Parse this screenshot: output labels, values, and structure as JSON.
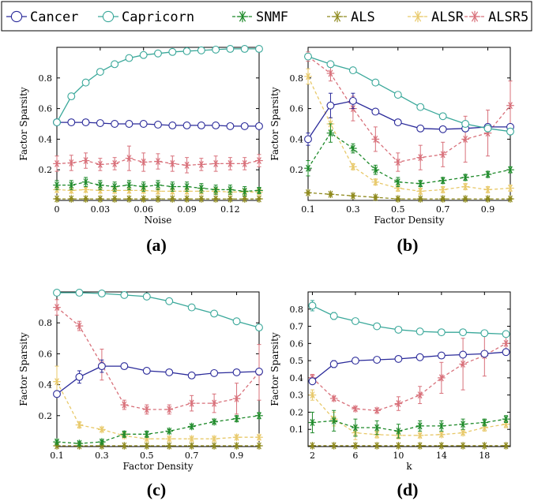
{
  "legend": {
    "entries": [
      {
        "name": "Cancer",
        "color": "#2a2a9a",
        "marker": "circle",
        "dash": "solid"
      },
      {
        "name": "Capricorn",
        "color": "#3aa89a",
        "marker": "circle",
        "dash": "solid"
      },
      {
        "name": "SNMF",
        "color": "#1e8a2a",
        "marker": "star",
        "dash": "dashed"
      },
      {
        "name": "ALS",
        "color": "#8f8a1e",
        "marker": "star",
        "dash": "dashed"
      },
      {
        "name": "ALSR",
        "color": "#e8c96a",
        "marker": "star",
        "dash": "dashed"
      },
      {
        "name": "ALSR5",
        "color": "#d8707a",
        "marker": "star",
        "dash": "dashed"
      }
    ]
  },
  "chart_data": [
    {
      "type": "line",
      "panel_label": "(a)",
      "xlabel": "Noise",
      "ylabel": "Factor Sparsity",
      "xlim": [
        0,
        0.14
      ],
      "ylim": [
        0,
        1.0
      ],
      "xticks": [
        0,
        0.03,
        0.06,
        0.09,
        0.12
      ],
      "xtick_labels": [
        "0",
        "0.03",
        "0.06",
        "0.09",
        "0.12"
      ],
      "yticks": [
        0.2,
        0.4,
        0.6,
        0.8
      ],
      "ytick_labels": [
        "0.2",
        "0.4",
        "0.6",
        "0.8"
      ],
      "x": [
        0,
        0.01,
        0.02,
        0.03,
        0.04,
        0.05,
        0.06,
        0.07,
        0.08,
        0.09,
        0.1,
        0.11,
        0.12,
        0.13,
        0.14
      ],
      "series": [
        {
          "name": "Cancer",
          "values": [
            0.51,
            0.51,
            0.51,
            0.505,
            0.5,
            0.5,
            0.5,
            0.495,
            0.49,
            0.49,
            0.49,
            0.49,
            0.485,
            0.485,
            0.485
          ],
          "err": [
            0.005,
            0.005,
            0.005,
            0.005,
            0.005,
            0.005,
            0.005,
            0.005,
            0.005,
            0.005,
            0.005,
            0.005,
            0.005,
            0.005,
            0.005
          ]
        },
        {
          "name": "Capricorn",
          "values": [
            0.51,
            0.68,
            0.77,
            0.84,
            0.89,
            0.93,
            0.95,
            0.96,
            0.97,
            0.975,
            0.98,
            0.985,
            0.99,
            0.99,
            0.99
          ],
          "err": [
            0.01,
            0.02,
            0.015,
            0.01,
            0.01,
            0.005,
            0.005,
            0.005,
            0.005,
            0.005,
            0.005,
            0.005,
            0.005,
            0.005,
            0.005
          ]
        },
        {
          "name": "SNMF",
          "values": [
            0.1,
            0.1,
            0.12,
            0.1,
            0.09,
            0.1,
            0.09,
            0.1,
            0.09,
            0.09,
            0.08,
            0.07,
            0.07,
            0.06,
            0.065
          ],
          "err": [
            0.03,
            0.03,
            0.03,
            0.03,
            0.03,
            0.03,
            0.03,
            0.03,
            0.03,
            0.03,
            0.03,
            0.03,
            0.03,
            0.03,
            0.02
          ]
        },
        {
          "name": "ALS",
          "values": [
            0.01,
            0.01,
            0.01,
            0.01,
            0.01,
            0.01,
            0.01,
            0.01,
            0.01,
            0.01,
            0.01,
            0.01,
            0.01,
            0.01,
            0.01
          ],
          "err": [
            0.003,
            0.003,
            0.003,
            0.003,
            0.003,
            0.003,
            0.003,
            0.003,
            0.003,
            0.003,
            0.003,
            0.003,
            0.003,
            0.003,
            0.003
          ]
        },
        {
          "name": "ALSR",
          "values": [
            0.07,
            0.065,
            0.07,
            0.065,
            0.065,
            0.065,
            0.065,
            0.06,
            0.06,
            0.06,
            0.06,
            0.06,
            0.055,
            0.055,
            0.055
          ],
          "err": [
            0.015,
            0.015,
            0.015,
            0.015,
            0.015,
            0.015,
            0.015,
            0.015,
            0.015,
            0.015,
            0.015,
            0.015,
            0.015,
            0.015,
            0.015
          ]
        },
        {
          "name": "ALSR5",
          "values": [
            0.24,
            0.245,
            0.26,
            0.235,
            0.24,
            0.275,
            0.25,
            0.255,
            0.24,
            0.23,
            0.235,
            0.24,
            0.24,
            0.24,
            0.26
          ],
          "err": [
            0.05,
            0.05,
            0.05,
            0.04,
            0.04,
            0.08,
            0.06,
            0.05,
            0.05,
            0.05,
            0.04,
            0.05,
            0.04,
            0.04,
            0.04
          ]
        }
      ]
    },
    {
      "type": "line",
      "panel_label": "(b)",
      "xlabel": "Factor Density",
      "ylabel": "Factor Sparsity",
      "xlim": [
        0.1,
        1.0
      ],
      "ylim": [
        0,
        1.0
      ],
      "xticks": [
        0.1,
        0.3,
        0.5,
        0.7,
        0.9
      ],
      "xtick_labels": [
        "0.1",
        "0.3",
        "0.5",
        "0.7",
        "0.9"
      ],
      "yticks": [
        0.2,
        0.4,
        0.6,
        0.8
      ],
      "ytick_labels": [
        "0.2",
        "0.4",
        "0.6",
        "0.8"
      ],
      "x": [
        0.1,
        0.2,
        0.3,
        0.4,
        0.5,
        0.6,
        0.7,
        0.8,
        0.9,
        1.0
      ],
      "series": [
        {
          "name": "Cancer",
          "values": [
            0.4,
            0.62,
            0.65,
            0.58,
            0.51,
            0.47,
            0.465,
            0.47,
            0.48,
            0.48
          ],
          "err": [
            0.04,
            0.08,
            0.05,
            0.01,
            0.01,
            0.01,
            0.01,
            0.01,
            0.01,
            0.01
          ]
        },
        {
          "name": "Capricorn",
          "values": [
            0.94,
            0.89,
            0.85,
            0.77,
            0.69,
            0.61,
            0.55,
            0.5,
            0.47,
            0.45
          ],
          "err": [
            0.01,
            0.01,
            0.01,
            0.01,
            0.01,
            0.01,
            0.01,
            0.01,
            0.01,
            0.01
          ]
        },
        {
          "name": "SNMF",
          "values": [
            0.21,
            0.44,
            0.34,
            0.2,
            0.12,
            0.11,
            0.13,
            0.15,
            0.17,
            0.2
          ],
          "err": [
            0.05,
            0.06,
            0.03,
            0.03,
            0.03,
            0.02,
            0.02,
            0.02,
            0.02,
            0.02
          ]
        },
        {
          "name": "ALS",
          "values": [
            0.05,
            0.04,
            0.03,
            0.02,
            0.01,
            0.01,
            0.01,
            0.01,
            0.01,
            0.01
          ],
          "err": [
            0.005,
            0.005,
            0.005,
            0.005,
            0.005,
            0.005,
            0.005,
            0.005,
            0.005,
            0.005
          ]
        },
        {
          "name": "ALSR",
          "values": [
            0.81,
            0.5,
            0.22,
            0.12,
            0.08,
            0.06,
            0.07,
            0.09,
            0.07,
            0.08
          ],
          "err": [
            0.05,
            0.04,
            0.02,
            0.02,
            0.02,
            0.02,
            0.02,
            0.02,
            0.02,
            0.02
          ]
        },
        {
          "name": "ALSR5",
          "values": [
            0.94,
            0.83,
            0.6,
            0.4,
            0.25,
            0.28,
            0.3,
            0.4,
            0.44,
            0.62
          ],
          "err": [
            0.03,
            0.05,
            0.08,
            0.08,
            0.06,
            0.08,
            0.08,
            0.15,
            0.15,
            0.16
          ]
        }
      ]
    },
    {
      "type": "line",
      "panel_label": "(c)",
      "xlabel": "Factor Density",
      "ylabel": "Factor Sparsity",
      "xlim": [
        0.1,
        1.0
      ],
      "ylim": [
        0,
        1.0
      ],
      "xticks": [
        0.1,
        0.3,
        0.5,
        0.7,
        0.9
      ],
      "xtick_labels": [
        "0.1",
        "0.3",
        "0.5",
        "0.7",
        "0.9"
      ],
      "yticks": [
        0.2,
        0.4,
        0.6,
        0.8
      ],
      "ytick_labels": [
        "0.2",
        "0.4",
        "0.6",
        "0.8"
      ],
      "x": [
        0.1,
        0.2,
        0.3,
        0.4,
        0.5,
        0.6,
        0.7,
        0.8,
        0.9,
        1.0
      ],
      "series": [
        {
          "name": "Cancer",
          "values": [
            0.34,
            0.45,
            0.52,
            0.52,
            0.49,
            0.48,
            0.46,
            0.475,
            0.48,
            0.485
          ],
          "err": [
            0.02,
            0.04,
            0.04,
            0.02,
            0.01,
            0.01,
            0.01,
            0.01,
            0.01,
            0.01
          ]
        },
        {
          "name": "Capricorn",
          "values": [
            0.995,
            0.995,
            0.99,
            0.98,
            0.97,
            0.94,
            0.9,
            0.86,
            0.81,
            0.77
          ],
          "err": [
            0.005,
            0.005,
            0.005,
            0.005,
            0.005,
            0.005,
            0.005,
            0.005,
            0.01,
            0.02
          ]
        },
        {
          "name": "SNMF",
          "values": [
            0.03,
            0.02,
            0.03,
            0.08,
            0.08,
            0.1,
            0.13,
            0.16,
            0.18,
            0.2
          ],
          "err": [
            0.01,
            0.01,
            0.01,
            0.02,
            0.02,
            0.01,
            0.01,
            0.01,
            0.02,
            0.02
          ]
        },
        {
          "name": "ALS",
          "values": [
            0.005,
            0.005,
            0.005,
            0.005,
            0.005,
            0.005,
            0.005,
            0.005,
            0.005,
            0.005
          ],
          "err": [
            0.002,
            0.002,
            0.002,
            0.002,
            0.002,
            0.002,
            0.002,
            0.002,
            0.002,
            0.002
          ]
        },
        {
          "name": "ALSR",
          "values": [
            0.42,
            0.14,
            0.11,
            0.07,
            0.05,
            0.05,
            0.05,
            0.05,
            0.06,
            0.06
          ],
          "err": [
            0.1,
            0.02,
            0.01,
            0.01,
            0.01,
            0.01,
            0.01,
            0.01,
            0.01,
            0.01
          ]
        },
        {
          "name": "ALSR5",
          "values": [
            0.9,
            0.78,
            0.53,
            0.27,
            0.24,
            0.24,
            0.28,
            0.28,
            0.31,
            0.48
          ],
          "err": [
            0.05,
            0.03,
            0.1,
            0.03,
            0.03,
            0.03,
            0.05,
            0.06,
            0.1,
            0.18
          ]
        }
      ]
    },
    {
      "type": "line",
      "panel_label": "(d)",
      "xlabel": "k",
      "ylabel": "Factor Sparsity",
      "xlim": [
        1.6,
        20.4
      ],
      "ylim": [
        0,
        0.9
      ],
      "xticks": [
        2,
        6,
        10,
        14,
        18
      ],
      "xtick_labels": [
        "2",
        "6",
        "10",
        "14",
        "18"
      ],
      "yticks": [
        0.1,
        0.2,
        0.3,
        0.4,
        0.5,
        0.6,
        0.7,
        0.8
      ],
      "ytick_labels": [
        "0.1",
        "0.2",
        "0.3",
        "0.4",
        "0.5",
        "0.6",
        "0.7",
        "0.8"
      ],
      "x": [
        2,
        4,
        6,
        8,
        10,
        12,
        14,
        16,
        18,
        20
      ],
      "series": [
        {
          "name": "Cancer",
          "values": [
            0.38,
            0.48,
            0.5,
            0.505,
            0.51,
            0.52,
            0.53,
            0.535,
            0.54,
            0.55
          ],
          "err": [
            0.01,
            0.02,
            0.01,
            0.01,
            0.01,
            0.01,
            0.01,
            0.01,
            0.01,
            0.01
          ]
        },
        {
          "name": "Capricorn",
          "values": [
            0.82,
            0.76,
            0.73,
            0.7,
            0.68,
            0.67,
            0.665,
            0.665,
            0.66,
            0.655
          ],
          "err": [
            0.03,
            0.02,
            0.01,
            0.01,
            0.01,
            0.01,
            0.01,
            0.01,
            0.01,
            0.01
          ]
        },
        {
          "name": "SNMF",
          "values": [
            0.14,
            0.15,
            0.11,
            0.11,
            0.09,
            0.12,
            0.12,
            0.13,
            0.14,
            0.16
          ],
          "err": [
            0.06,
            0.06,
            0.05,
            0.04,
            0.04,
            0.03,
            0.03,
            0.03,
            0.02,
            0.02
          ]
        },
        {
          "name": "ALS",
          "values": [
            0.005,
            0.005,
            0.005,
            0.005,
            0.005,
            0.005,
            0.005,
            0.005,
            0.005,
            0.005
          ],
          "err": [
            0.002,
            0.002,
            0.002,
            0.002,
            0.002,
            0.002,
            0.002,
            0.002,
            0.002,
            0.002
          ]
        },
        {
          "name": "ALSR",
          "values": [
            0.3,
            0.16,
            0.08,
            0.07,
            0.065,
            0.065,
            0.07,
            0.08,
            0.11,
            0.13
          ],
          "err": [
            0.03,
            0.04,
            0.04,
            0.02,
            0.02,
            0.01,
            0.01,
            0.01,
            0.02,
            0.02
          ]
        },
        {
          "name": "ALSR5",
          "values": [
            0.4,
            0.28,
            0.22,
            0.21,
            0.25,
            0.3,
            0.4,
            0.48,
            0.53,
            0.6
          ],
          "err": [
            0.02,
            0.01,
            0.01,
            0.01,
            0.04,
            0.05,
            0.09,
            0.15,
            0.12,
            0.04
          ]
        }
      ]
    }
  ]
}
